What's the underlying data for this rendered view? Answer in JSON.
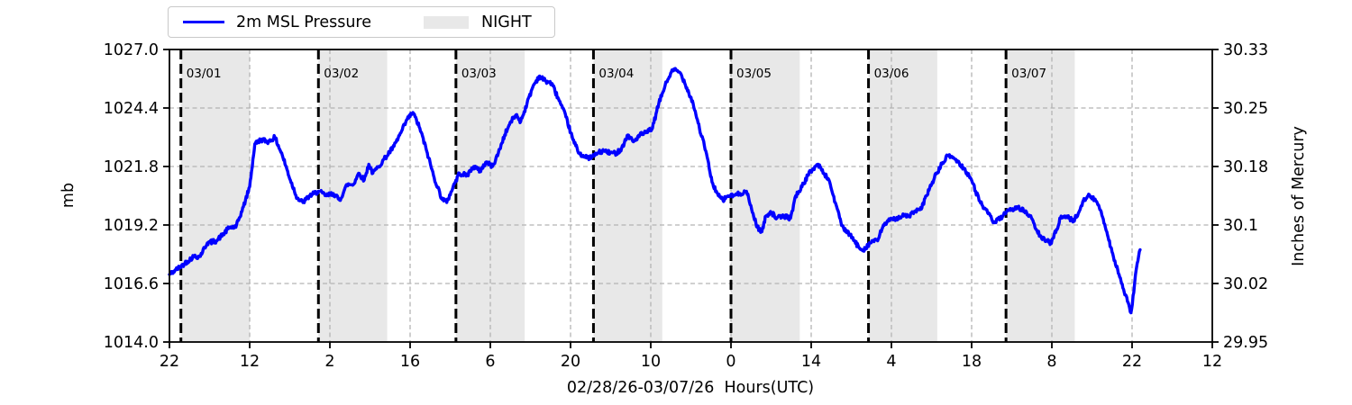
{
  "legend": {
    "series_label": "2m MSL Pressure",
    "night_label": "NIGHT"
  },
  "axes": {
    "x_label": "02/28/26-03/07/26  Hours(UTC)",
    "y_left_label": "mb",
    "y_right_label": "Inches of Mercury"
  },
  "chart_data": {
    "type": "line",
    "title": "",
    "series_name": "2m MSL Pressure",
    "x_unit": "hours (UTC), first tick = 22:00 02/28/26, ticks every 14 h",
    "x_tick_hours": [
      0,
      14,
      28,
      42,
      56,
      70,
      84,
      98,
      112,
      126,
      140,
      154,
      168,
      182
    ],
    "x_tick_labels": [
      "22",
      "12",
      "2",
      "16",
      "6",
      "20",
      "10",
      "0",
      "14",
      "4",
      "18",
      "8",
      "22",
      "12"
    ],
    "x_range_hours": [
      0,
      182
    ],
    "y_left": {
      "label": "mb",
      "range": [
        1014.0,
        1027.0
      ],
      "ticks": [
        1027.0,
        1024.4,
        1021.8,
        1019.2,
        1016.6,
        1014.0
      ],
      "tick_labels": [
        "1027.0",
        "1024.4",
        "1021.8",
        "1019.2",
        "1016.6",
        "1014.0"
      ]
    },
    "y_right": {
      "label": "Inches of Mercury",
      "range": [
        29.95,
        30.33
      ],
      "ticks": [
        30.33,
        30.25,
        30.18,
        30.1,
        30.02,
        29.95
      ],
      "tick_labels": [
        "30.33",
        "30.25",
        "30.18",
        "30.1",
        "30.02",
        "29.95"
      ]
    },
    "grid": true,
    "legend_position": "top-left",
    "day_markers": [
      {
        "label": "03/01",
        "hour": 2
      },
      {
        "label": "03/02",
        "hour": 26
      },
      {
        "label": "03/03",
        "hour": 50
      },
      {
        "label": "03/04",
        "hour": 74
      },
      {
        "label": "03/05",
        "hour": 98
      },
      {
        "label": "03/06",
        "hour": 122
      },
      {
        "label": "03/07",
        "hour": 146
      }
    ],
    "night_bands_hours": [
      [
        2,
        14
      ],
      [
        26,
        38
      ],
      [
        50,
        62
      ],
      [
        74,
        86
      ],
      [
        98,
        110
      ],
      [
        122,
        134
      ],
      [
        146,
        158
      ]
    ],
    "colors": {
      "line": "#0000ff",
      "night": "#e8e8e8",
      "grid": "#b3b3b3",
      "day_line": "#000000"
    },
    "points": [
      [
        0,
        1017.0
      ],
      [
        1.1,
        1017.2
      ],
      [
        2.7,
        1017.5
      ],
      [
        4.2,
        1017.8
      ],
      [
        5.3,
        1017.8
      ],
      [
        6.6,
        1018.4
      ],
      [
        8.2,
        1018.5
      ],
      [
        9.4,
        1018.8
      ],
      [
        10.5,
        1019.1
      ],
      [
        11.6,
        1019.1
      ],
      [
        12.9,
        1020.0
      ],
      [
        14.0,
        1020.9
      ],
      [
        14.9,
        1022.8
      ],
      [
        16.0,
        1023.0
      ],
      [
        17.3,
        1022.9
      ],
      [
        18.4,
        1023.1
      ],
      [
        19.7,
        1022.3
      ],
      [
        21.1,
        1021.2
      ],
      [
        22.3,
        1020.4
      ],
      [
        23.3,
        1020.2
      ],
      [
        24.5,
        1020.5
      ],
      [
        26.0,
        1020.7
      ],
      [
        27.4,
        1020.5
      ],
      [
        28.6,
        1020.6
      ],
      [
        29.7,
        1020.3
      ],
      [
        31.0,
        1021.0
      ],
      [
        32.1,
        1021.0
      ],
      [
        33.0,
        1021.5
      ],
      [
        34.0,
        1021.2
      ],
      [
        34.8,
        1021.9
      ],
      [
        35.5,
        1021.5
      ],
      [
        36.5,
        1021.8
      ],
      [
        37.7,
        1022.2
      ],
      [
        39.2,
        1022.7
      ],
      [
        40.4,
        1023.3
      ],
      [
        41.5,
        1023.9
      ],
      [
        42.5,
        1024.2
      ],
      [
        43.7,
        1023.5
      ],
      [
        45.0,
        1022.4
      ],
      [
        46.2,
        1021.3
      ],
      [
        47.5,
        1020.4
      ],
      [
        48.4,
        1020.2
      ],
      [
        49.5,
        1020.9
      ],
      [
        50.6,
        1021.5
      ],
      [
        51.9,
        1021.4
      ],
      [
        53.1,
        1021.8
      ],
      [
        54.2,
        1021.6
      ],
      [
        55.3,
        1022.0
      ],
      [
        56.4,
        1021.8
      ],
      [
        57.4,
        1022.4
      ],
      [
        58.5,
        1023.2
      ],
      [
        59.6,
        1023.8
      ],
      [
        60.5,
        1024.1
      ],
      [
        61.3,
        1023.8
      ],
      [
        62.4,
        1024.6
      ],
      [
        63.5,
        1025.4
      ],
      [
        64.5,
        1025.8
      ],
      [
        65.7,
        1025.6
      ],
      [
        66.7,
        1025.5
      ],
      [
        67.9,
        1024.8
      ],
      [
        69.2,
        1024.0
      ],
      [
        70.4,
        1023.0
      ],
      [
        71.5,
        1022.4
      ],
      [
        72.6,
        1022.2
      ],
      [
        73.7,
        1022.2
      ],
      [
        74.7,
        1022.4
      ],
      [
        75.8,
        1022.5
      ],
      [
        76.9,
        1022.4
      ],
      [
        78.0,
        1022.4
      ],
      [
        78.9,
        1022.6
      ],
      [
        80.0,
        1023.2
      ],
      [
        81.0,
        1022.9
      ],
      [
        82.1,
        1023.2
      ],
      [
        83.2,
        1023.3
      ],
      [
        84.3,
        1023.5
      ],
      [
        85.4,
        1024.6
      ],
      [
        86.5,
        1025.4
      ],
      [
        87.6,
        1026.0
      ],
      [
        88.4,
        1026.1
      ],
      [
        89.3,
        1025.9
      ],
      [
        90.3,
        1025.3
      ],
      [
        91.4,
        1024.6
      ],
      [
        92.5,
        1023.5
      ],
      [
        93.6,
        1022.5
      ],
      [
        94.7,
        1021.1
      ],
      [
        95.8,
        1020.5
      ],
      [
        96.6,
        1020.3
      ],
      [
        97.5,
        1020.5
      ],
      [
        98.4,
        1020.5
      ],
      [
        99.6,
        1020.6
      ],
      [
        100.7,
        1020.7
      ],
      [
        101.6,
        1019.9
      ],
      [
        102.6,
        1019.1
      ],
      [
        103.4,
        1018.9
      ],
      [
        104.1,
        1019.6
      ],
      [
        104.9,
        1019.8
      ],
      [
        106.0,
        1019.5
      ],
      [
        107.3,
        1019.6
      ],
      [
        108.4,
        1019.5
      ],
      [
        109.3,
        1020.5
      ],
      [
        110.4,
        1020.9
      ],
      [
        111.4,
        1021.4
      ],
      [
        112.3,
        1021.7
      ],
      [
        113.2,
        1021.9
      ],
      [
        114.2,
        1021.5
      ],
      [
        115.1,
        1021.2
      ],
      [
        116.2,
        1020.2
      ],
      [
        117.2,
        1019.3
      ],
      [
        118.0,
        1018.9
      ],
      [
        118.7,
        1018.8
      ],
      [
        119.5,
        1018.5
      ],
      [
        120.3,
        1018.2
      ],
      [
        121.1,
        1018.1
      ],
      [
        121.9,
        1018.3
      ],
      [
        122.7,
        1018.5
      ],
      [
        123.6,
        1018.5
      ],
      [
        124.6,
        1019.2
      ],
      [
        125.7,
        1019.4
      ],
      [
        126.8,
        1019.5
      ],
      [
        127.9,
        1019.6
      ],
      [
        129.0,
        1019.6
      ],
      [
        130.1,
        1019.8
      ],
      [
        131.2,
        1019.9
      ],
      [
        132.1,
        1020.5
      ],
      [
        133.5,
        1021.3
      ],
      [
        134.8,
        1021.9
      ],
      [
        135.9,
        1022.3
      ],
      [
        136.8,
        1022.2
      ],
      [
        137.6,
        1022.0
      ],
      [
        138.7,
        1021.7
      ],
      [
        139.8,
        1021.3
      ],
      [
        140.7,
        1020.7
      ],
      [
        141.8,
        1020.1
      ],
      [
        142.9,
        1019.7
      ],
      [
        144.0,
        1019.3
      ],
      [
        145.0,
        1019.5
      ],
      [
        145.9,
        1019.7
      ],
      [
        147.0,
        1019.9
      ],
      [
        148.1,
        1020.0
      ],
      [
        149.2,
        1019.8
      ],
      [
        150.2,
        1019.6
      ],
      [
        151.3,
        1019.0
      ],
      [
        152.2,
        1018.6
      ],
      [
        153.2,
        1018.5
      ],
      [
        153.8,
        1018.4
      ],
      [
        154.8,
        1019.0
      ],
      [
        155.5,
        1019.5
      ],
      [
        156.2,
        1019.6
      ],
      [
        157.0,
        1019.5
      ],
      [
        157.8,
        1019.4
      ],
      [
        158.6,
        1019.7
      ],
      [
        159.5,
        1020.3
      ],
      [
        160.3,
        1020.5
      ],
      [
        161.1,
        1020.4
      ],
      [
        161.9,
        1020.2
      ],
      [
        162.6,
        1019.8
      ],
      [
        163.6,
        1018.9
      ],
      [
        164.5,
        1018.0
      ],
      [
        165.5,
        1017.2
      ],
      [
        166.4,
        1016.4
      ],
      [
        167.2,
        1015.8
      ],
      [
        167.8,
        1015.3
      ],
      [
        168.3,
        1016.2
      ],
      [
        168.6,
        1017.0
      ],
      [
        168.9,
        1017.5
      ],
      [
        169.4,
        1018.1
      ]
    ]
  }
}
